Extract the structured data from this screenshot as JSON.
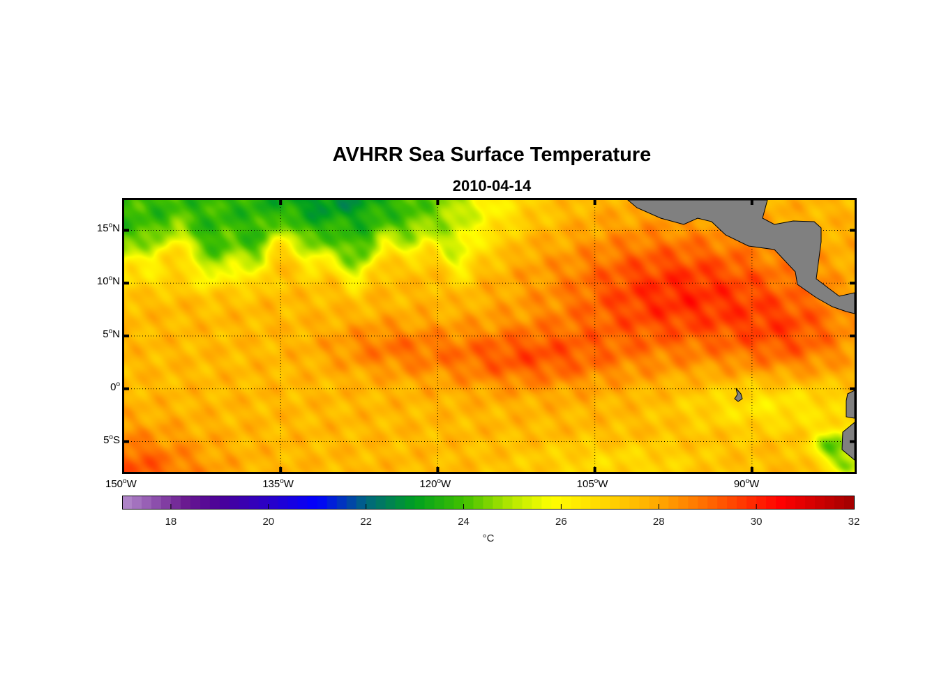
{
  "title": "AVHRR Sea Surface Temperature",
  "subtitle": "2010-04-14",
  "chart_data": {
    "type": "heatmap",
    "title": "AVHRR Sea Surface Temperature",
    "subtitle": "2010-04-14",
    "lon_range": [
      -150,
      -80
    ],
    "lat_range": [
      -8,
      18
    ],
    "grid": true,
    "lon_ticks": [
      {
        "deg": "150",
        "hem": "W",
        "value": -150
      },
      {
        "deg": "135",
        "hem": "W",
        "value": -135
      },
      {
        "deg": "120",
        "hem": "W",
        "value": -120
      },
      {
        "deg": "105",
        "hem": "W",
        "value": -105
      },
      {
        "deg": "90",
        "hem": "W",
        "value": -90
      }
    ],
    "lat_ticks": [
      {
        "deg": "15",
        "hem": "N",
        "value": 15
      },
      {
        "deg": "10",
        "hem": "N",
        "value": 10
      },
      {
        "deg": "5",
        "hem": "N",
        "value": 5
      },
      {
        "deg": "0",
        "hem": "",
        "value": 0
      },
      {
        "deg": "5",
        "hem": "S",
        "value": -5
      }
    ],
    "colorbar": {
      "range": [
        17,
        32
      ],
      "ticks": [
        "18",
        "20",
        "22",
        "24",
        "26",
        "28",
        "30",
        "32"
      ],
      "tick_values": [
        18,
        20,
        22,
        24,
        26,
        28,
        30,
        32
      ],
      "label": "°C",
      "stops": [
        [
          17,
          "#b48ccc"
        ],
        [
          18.3,
          "#6a1a90"
        ],
        [
          19,
          "#4a0098"
        ],
        [
          20,
          "#2a00c8"
        ],
        [
          21,
          "#0000ff"
        ],
        [
          22,
          "#006680"
        ],
        [
          23,
          "#00a020"
        ],
        [
          24,
          "#40c000"
        ],
        [
          25,
          "#b8e800"
        ],
        [
          25.8,
          "#ffff00"
        ],
        [
          27,
          "#ffd200"
        ],
        [
          28,
          "#ffa800"
        ],
        [
          29,
          "#ff6a00"
        ],
        [
          30.5,
          "#ff0000"
        ],
        [
          32,
          "#a00000"
        ]
      ]
    },
    "field_features": [
      {
        "desc": "cool northwest",
        "lon": -135,
        "lat": 17,
        "value": 23.5
      },
      {
        "desc": "warm eastern tropical band",
        "lon": -100,
        "lat": 8,
        "value": 30
      },
      {
        "desc": "cool Peru upwelling",
        "lon": -82,
        "lat": -6,
        "value": 24
      }
    ]
  },
  "colors": {
    "land": "#808080",
    "frame": "#000000"
  }
}
